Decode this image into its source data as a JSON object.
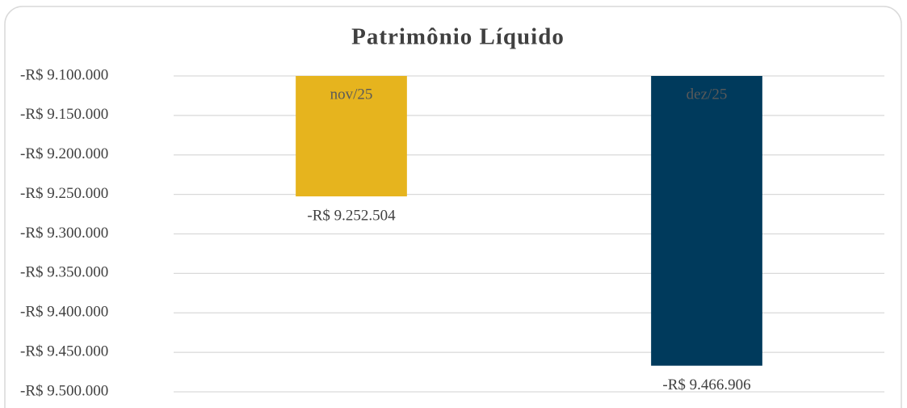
{
  "chart_data": {
    "type": "bar",
    "title": "Patrimônio Líquido",
    "categories": [
      "nov/25",
      "dez/25"
    ],
    "values": [
      -9252504,
      -9466906
    ],
    "value_labels": [
      "-R$ 9.252.504",
      "-R$ 9.466.906"
    ],
    "colors": [
      "#e6b41e",
      "#003a5c"
    ],
    "ylim": [
      -9500000,
      -9100000
    ],
    "yticks": [
      {
        "value": -9100000,
        "label": "-R$ 9.100.000"
      },
      {
        "value": -9150000,
        "label": "-R$ 9.150.000"
      },
      {
        "value": -9200000,
        "label": "-R$ 9.200.000"
      },
      {
        "value": -9250000,
        "label": "-R$ 9.250.000"
      },
      {
        "value": -9300000,
        "label": "-R$ 9.300.000"
      },
      {
        "value": -9350000,
        "label": "-R$ 9.350.000"
      },
      {
        "value": -9400000,
        "label": "-R$ 9.400.000"
      },
      {
        "value": -9450000,
        "label": "-R$ 9.450.000"
      },
      {
        "value": -9500000,
        "label": "-R$ 9.500.000"
      }
    ],
    "grid": true
  }
}
